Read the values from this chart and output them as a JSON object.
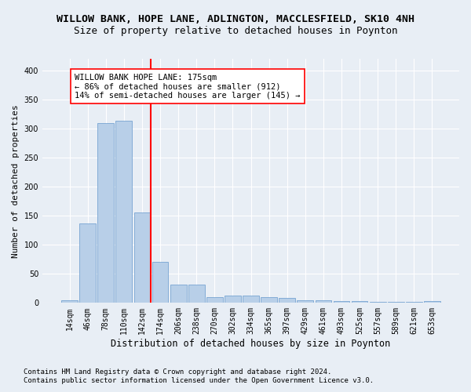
{
  "title": "WILLOW BANK, HOPE LANE, ADLINGTON, MACCLESFIELD, SK10 4NH",
  "subtitle": "Size of property relative to detached houses in Poynton",
  "xlabel": "Distribution of detached houses by size in Poynton",
  "ylabel": "Number of detached properties",
  "categories": [
    "14sqm",
    "46sqm",
    "78sqm",
    "110sqm",
    "142sqm",
    "174sqm",
    "206sqm",
    "238sqm",
    "270sqm",
    "302sqm",
    "334sqm",
    "365sqm",
    "397sqm",
    "429sqm",
    "461sqm",
    "493sqm",
    "525sqm",
    "557sqm",
    "589sqm",
    "621sqm",
    "653sqm"
  ],
  "values": [
    4,
    137,
    310,
    313,
    156,
    71,
    32,
    32,
    10,
    13,
    13,
    10,
    8,
    5,
    4,
    3,
    3,
    2,
    2,
    2,
    3
  ],
  "bar_color": "#b8cfe8",
  "bar_edge_color": "#6699cc",
  "property_line_label": "WILLOW BANK HOPE LANE: 175sqm",
  "annotation_line1": "← 86% of detached houses are smaller (912)",
  "annotation_line2": "14% of semi-detached houses are larger (145) →",
  "annotation_box_color": "white",
  "annotation_box_edge": "red",
  "vline_color": "red",
  "vline_x": 4.5,
  "ylim": [
    0,
    420
  ],
  "yticks": [
    0,
    50,
    100,
    150,
    200,
    250,
    300,
    350,
    400
  ],
  "footnote1": "Contains HM Land Registry data © Crown copyright and database right 2024.",
  "footnote2": "Contains public sector information licensed under the Open Government Licence v3.0.",
  "background_color": "#e8eef5",
  "plot_background": "#e8eef5",
  "grid_color": "white",
  "title_fontsize": 9.5,
  "subtitle_fontsize": 9,
  "xlabel_fontsize": 8.5,
  "ylabel_fontsize": 8,
  "tick_fontsize": 7,
  "annot_fontsize": 7.5,
  "footnote_fontsize": 6.5
}
